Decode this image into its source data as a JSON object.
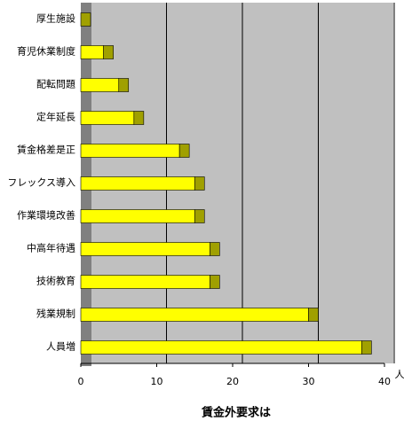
{
  "chart_data": {
    "type": "bar",
    "orientation": "horizontal",
    "title": "賃金外要求は",
    "unit": "人",
    "categories": [
      "厚生施設",
      "育児休業制度",
      "配転問題",
      "定年延長",
      "賃金格差是正",
      "フレックス導入",
      "作業環境改善",
      "中高年待遇",
      "技術教育",
      "残業規制",
      "人員増"
    ],
    "values": [
      0,
      3,
      5,
      7,
      13,
      15,
      15,
      17,
      17,
      30,
      37
    ],
    "color": "#ffff00",
    "side_color": "#a0a000",
    "xlim": [
      0,
      40
    ],
    "xticks": [
      0,
      10,
      20,
      30,
      40
    ],
    "grid": true
  }
}
